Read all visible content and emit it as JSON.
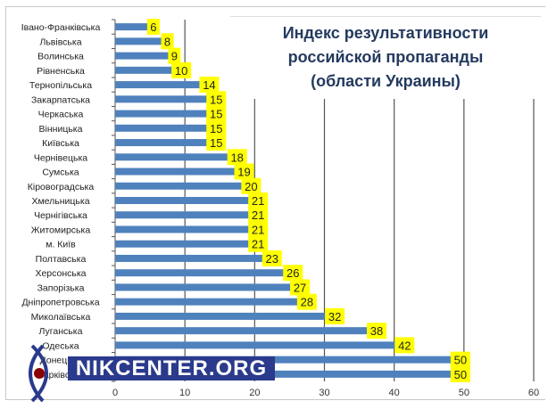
{
  "chart_data": {
    "type": "bar",
    "orientation": "horizontal",
    "title": "Индекс результативности\nроссийской пропаганды\n(области Украины)",
    "categories": [
      "Івано-Франківська",
      "Львівська",
      "Волинська",
      "Рівненська",
      "Тернопільська",
      "Закарпатська",
      "Черкаська",
      "Вінницька",
      "Київська",
      "Чернівецька",
      "Сумська",
      "Кіровоградська",
      "Хмельницька",
      "Чернігівська",
      "Житомирська",
      "м. Київ",
      "Полтавська",
      "Херсонська",
      "Запорізька",
      "Дніпропетровська",
      "Миколаївська",
      "Луганська",
      "Одеська",
      "Донецька",
      "Харківська"
    ],
    "values": [
      6,
      8,
      9,
      10,
      14,
      15,
      15,
      15,
      15,
      18,
      19,
      20,
      21,
      21,
      21,
      21,
      23,
      26,
      27,
      28,
      32,
      38,
      42,
      50,
      50
    ],
    "xlim": [
      0,
      60
    ],
    "xticks": [
      0,
      10,
      20,
      30,
      40,
      50,
      60
    ],
    "grid": true,
    "bar_color": "#4f81bd",
    "label_bg_color": "#ffff00"
  },
  "watermark": {
    "text": "NIKCENTER.ORG",
    "color": "#2a3a8c"
  }
}
